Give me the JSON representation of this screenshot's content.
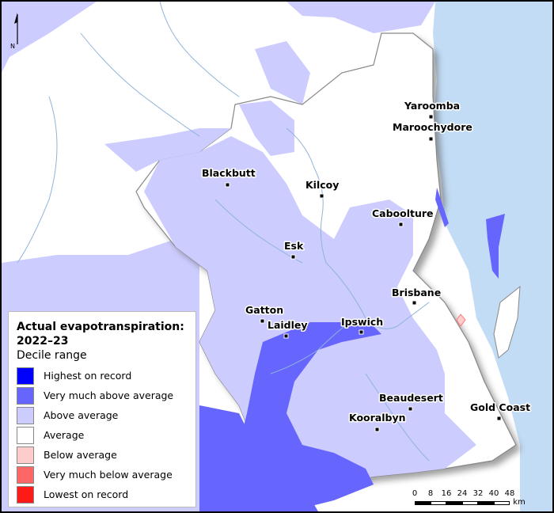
{
  "legend": {
    "title": "Actual evapotranspiration:\n2022–23",
    "title_line1": "Actual evapotranspiration:",
    "title_line2": "2022–23",
    "subtitle": "Decile range",
    "items": [
      {
        "label": "Highest on record",
        "color": "#0000ff"
      },
      {
        "label": "Very much above average",
        "color": "#6666ff"
      },
      {
        "label": "Above average",
        "color": "#ccccff"
      },
      {
        "label": "Average",
        "color": "#ffffff"
      },
      {
        "label": "Below average",
        "color": "#ffcccc"
      },
      {
        "label": "Very much below average",
        "color": "#ff6666"
      },
      {
        "label": "Lowest on record",
        "color": "#ff1a1a"
      }
    ]
  },
  "towns": {
    "yaroomba": "Yaroomba",
    "maroochydore": "Maroochydore",
    "blackbutt": "Blackbutt",
    "kilcoy": "Kilcoy",
    "caboolture": "Caboolture",
    "esk": "Esk",
    "brisbane": "Brisbane",
    "gatton": "Gatton",
    "laidley": "Laidley",
    "ipswich": "Ipswich",
    "beaudesert": "Beaudesert",
    "gold_coast": "Gold Coast",
    "kooralbyn": "Kooralbyn"
  },
  "north_arrow": {
    "label": "N"
  },
  "scale": {
    "ticks": [
      "0",
      "8",
      "16",
      "24",
      "32",
      "40",
      "48"
    ],
    "unit": "km"
  },
  "colors": {
    "ocean": "#c2dcf5",
    "above_average": "#ccccff",
    "very_much_above": "#6666ff",
    "below_average": "#ffcccc",
    "river": "#8fb4d9",
    "boundary": "#888888"
  }
}
